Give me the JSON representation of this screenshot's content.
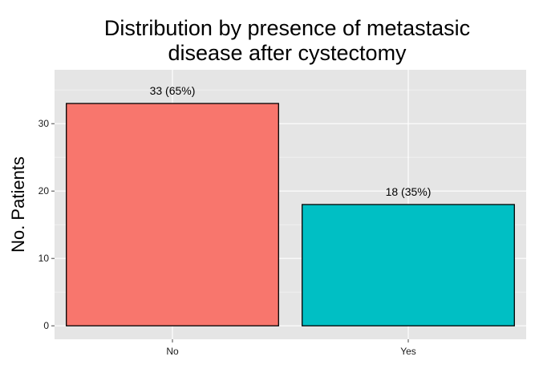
{
  "chart_data": {
    "type": "bar",
    "title": "Distribution by presence of metastasic",
    "title_line2": "disease after cystectomy",
    "xlabel": "",
    "ylabel": "No. Patients",
    "categories": [
      "No",
      "Yes"
    ],
    "values": [
      33,
      18
    ],
    "data_labels": [
      "33 (65%)",
      "18 (35%)"
    ],
    "bar_colors": [
      "#F8766D",
      "#00BFC4"
    ],
    "ylim": [
      -2,
      38
    ],
    "yticks": [
      0,
      10,
      20,
      30
    ],
    "ytick_labels": [
      "0",
      "10",
      "20",
      "30"
    ],
    "grid": true,
    "panel_background": "#E5E5E5",
    "grid_color": "#FFFFFF"
  }
}
